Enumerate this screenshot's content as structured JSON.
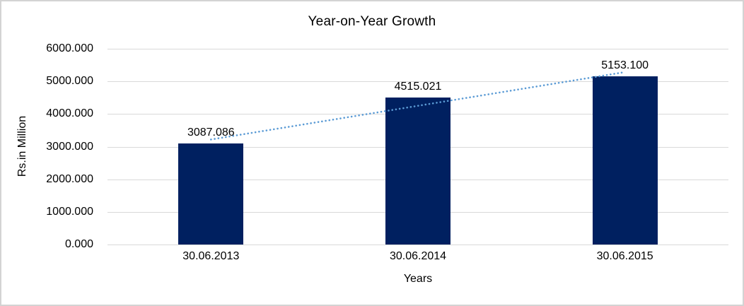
{
  "chart_data": {
    "type": "bar",
    "title": "Year-on-Year Growth",
    "xlabel": "Years",
    "ylabel": "Rs.in Million",
    "categories": [
      "30.06.2013",
      "30.06.2014",
      "30.06.2015"
    ],
    "values": [
      3087.086,
      4515.021,
      5153.1
    ],
    "data_labels": [
      "3087.086",
      "4515.021",
      "5153.100"
    ],
    "y_ticks": [
      "6000.000",
      "5000.000",
      "4000.000",
      "3000.000",
      "2000.000",
      "1000.000",
      "0.000"
    ],
    "ylim": [
      0,
      6000
    ],
    "grid": true,
    "legend_position": "none",
    "bar_color": "#002060",
    "gridline_color": "#d9d9d9",
    "trendline": {
      "type": "linear",
      "style": "dotted",
      "color": "#5b9bd5",
      "start_value": 3218.7,
      "end_value": 5284.7
    }
  }
}
